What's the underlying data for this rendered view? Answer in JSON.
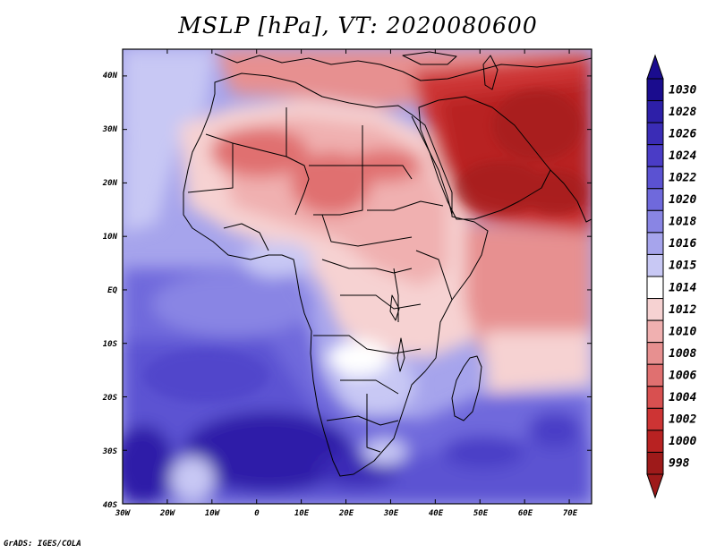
{
  "title": "MSLP [hPa], VT: 2020080600",
  "credit": "GrADS: IGES/COLA",
  "x_ticks": [
    "30W",
    "20W",
    "10W",
    "0",
    "10E",
    "20E",
    "30E",
    "40E",
    "50E",
    "60E",
    "70E"
  ],
  "y_ticks": [
    "40N",
    "30N",
    "20N",
    "10N",
    "EQ",
    "10S",
    "20S",
    "30S",
    "40S"
  ],
  "colorbar": {
    "levels": [
      "1030",
      "1028",
      "1026",
      "1024",
      "1022",
      "1020",
      "1018",
      "1016",
      "1015",
      "1014",
      "1012",
      "1010",
      "1008",
      "1006",
      "1004",
      "1002",
      "1000",
      "998"
    ],
    "colors": [
      "#1a0c8e",
      "#2d1fa8",
      "#3a2cb6",
      "#4a3cc6",
      "#5b52d2",
      "#6f69dc",
      "#8985e4",
      "#a6a4ec",
      "#c8c8f4",
      "#ffffff",
      "#f6d2d2",
      "#f0b0b0",
      "#e79090",
      "#e07070",
      "#d85050",
      "#cd3434",
      "#b82222",
      "#9e1a1a"
    ]
  },
  "chart_data": {
    "type": "heatmap",
    "title": "MSLP [hPa], VT: 2020080600",
    "variable": "MSLP",
    "units": "hPa",
    "valid_time": "2020080600",
    "lon_range": [
      -30,
      75
    ],
    "lat_range": [
      -40,
      45
    ],
    "color_levels": [
      998,
      1000,
      1002,
      1004,
      1006,
      1008,
      1010,
      1012,
      1014,
      1015,
      1016,
      1018,
      1020,
      1022,
      1024,
      1026,
      1028,
      1030
    ]
  }
}
